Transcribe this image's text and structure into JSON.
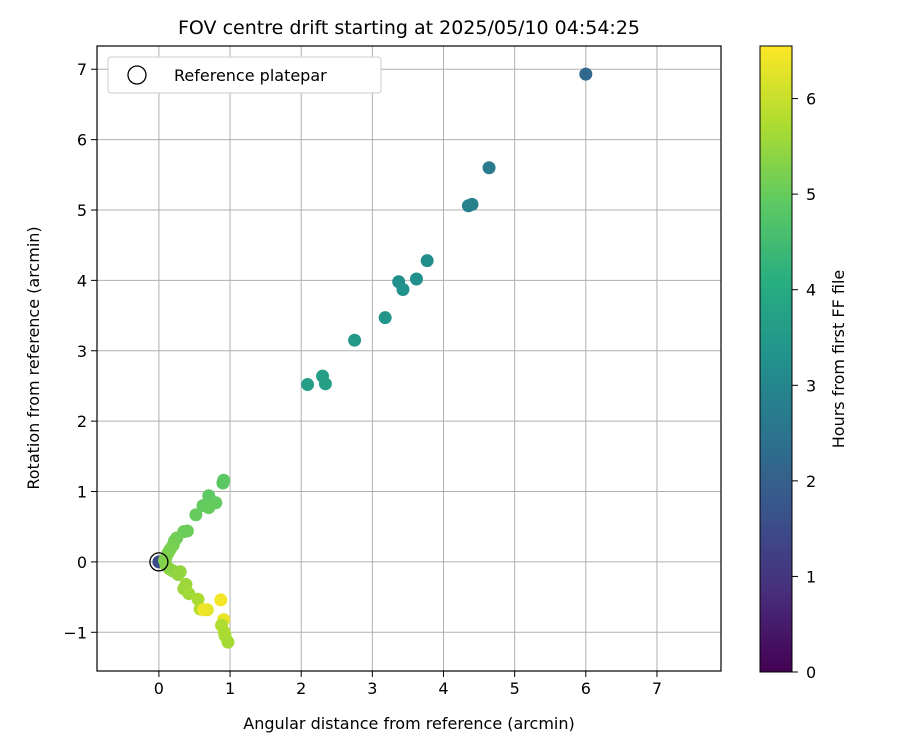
{
  "chart_data": {
    "type": "scatter",
    "title": "FOV centre drift starting at 2025/05/10 04:54:25",
    "xlabel": "Angular distance from reference (arcmin)",
    "ylabel": "Rotation from reference (arcmin)",
    "xlim": [
      -0.87,
      7.9
    ],
    "ylim": [
      -1.55,
      7.33
    ],
    "xticks": [
      0,
      1,
      2,
      3,
      4,
      5,
      6,
      7
    ],
    "yticks": [
      -1,
      0,
      1,
      2,
      3,
      4,
      5,
      6,
      7
    ],
    "grid": true,
    "legend": {
      "placement": "top-left",
      "entries": [
        "Reference platepar"
      ]
    },
    "reference_point": {
      "x": 0,
      "y": 0
    },
    "colorbar": {
      "label": "Hours from first FF file",
      "range": [
        0,
        6.55
      ],
      "ticks": [
        0,
        1,
        2,
        3,
        4,
        5,
        6
      ],
      "colormap": "viridis"
    },
    "points": [
      {
        "x": 0.0,
        "y": 0.0,
        "h": 1.5
      },
      {
        "x": 6.0,
        "y": 6.93,
        "h": 2.2
      },
      {
        "x": 4.64,
        "y": 5.6,
        "h": 2.7
      },
      {
        "x": 4.35,
        "y": 5.06,
        "h": 2.85
      },
      {
        "x": 4.4,
        "y": 5.08,
        "h": 2.85
      },
      {
        "x": 3.77,
        "y": 4.28,
        "h": 3.2
      },
      {
        "x": 3.37,
        "y": 3.98,
        "h": 3.25
      },
      {
        "x": 3.62,
        "y": 4.02,
        "h": 3.25
      },
      {
        "x": 3.43,
        "y": 3.87,
        "h": 3.3
      },
      {
        "x": 3.18,
        "y": 3.47,
        "h": 3.4
      },
      {
        "x": 2.75,
        "y": 3.15,
        "h": 3.5
      },
      {
        "x": 2.3,
        "y": 2.64,
        "h": 3.65
      },
      {
        "x": 2.09,
        "y": 2.52,
        "h": 3.7
      },
      {
        "x": 2.34,
        "y": 2.53,
        "h": 3.7
      },
      {
        "x": 0.91,
        "y": 1.16,
        "h": 4.85
      },
      {
        "x": 0.9,
        "y": 1.12,
        "h": 4.85
      },
      {
        "x": 0.7,
        "y": 0.94,
        "h": 4.9
      },
      {
        "x": 0.8,
        "y": 0.84,
        "h": 4.95
      },
      {
        "x": 0.62,
        "y": 0.8,
        "h": 4.95
      },
      {
        "x": 0.7,
        "y": 0.77,
        "h": 5.0
      },
      {
        "x": 0.52,
        "y": 0.67,
        "h": 5.0
      },
      {
        "x": 0.4,
        "y": 0.44,
        "h": 5.05
      },
      {
        "x": 0.35,
        "y": 0.43,
        "h": 5.05
      },
      {
        "x": 0.25,
        "y": 0.34,
        "h": 5.1
      },
      {
        "x": 0.22,
        "y": 0.3,
        "h": 5.1
      },
      {
        "x": 0.2,
        "y": 0.24,
        "h": 5.15
      },
      {
        "x": 0.16,
        "y": 0.18,
        "h": 5.2
      },
      {
        "x": 0.13,
        "y": 0.13,
        "h": 5.2
      },
      {
        "x": 0.1,
        "y": 0.06,
        "h": 5.25
      },
      {
        "x": 0.08,
        "y": 0.02,
        "h": 5.25
      },
      {
        "x": 0.1,
        "y": -0.05,
        "h": 5.3
      },
      {
        "x": 0.15,
        "y": -0.1,
        "h": 5.35
      },
      {
        "x": 0.2,
        "y": -0.13,
        "h": 5.4
      },
      {
        "x": 0.27,
        "y": -0.18,
        "h": 5.45
      },
      {
        "x": 0.3,
        "y": -0.14,
        "h": 5.45
      },
      {
        "x": 0.38,
        "y": -0.32,
        "h": 5.55
      },
      {
        "x": 0.35,
        "y": -0.38,
        "h": 5.55
      },
      {
        "x": 0.42,
        "y": -0.45,
        "h": 5.6
      },
      {
        "x": 0.55,
        "y": -0.53,
        "h": 5.7
      },
      {
        "x": 0.58,
        "y": -0.67,
        "h": 5.8
      },
      {
        "x": 0.68,
        "y": -0.68,
        "h": 6.3
      },
      {
        "x": 0.63,
        "y": -0.68,
        "h": 6.4
      },
      {
        "x": 0.87,
        "y": -0.54,
        "h": 6.45
      },
      {
        "x": 0.91,
        "y": -0.82,
        "h": 6.35
      },
      {
        "x": 0.88,
        "y": -0.9,
        "h": 5.75
      },
      {
        "x": 0.92,
        "y": -1.0,
        "h": 5.75
      },
      {
        "x": 0.93,
        "y": -1.05,
        "h": 5.7
      },
      {
        "x": 0.97,
        "y": -1.14,
        "h": 5.65
      }
    ]
  }
}
